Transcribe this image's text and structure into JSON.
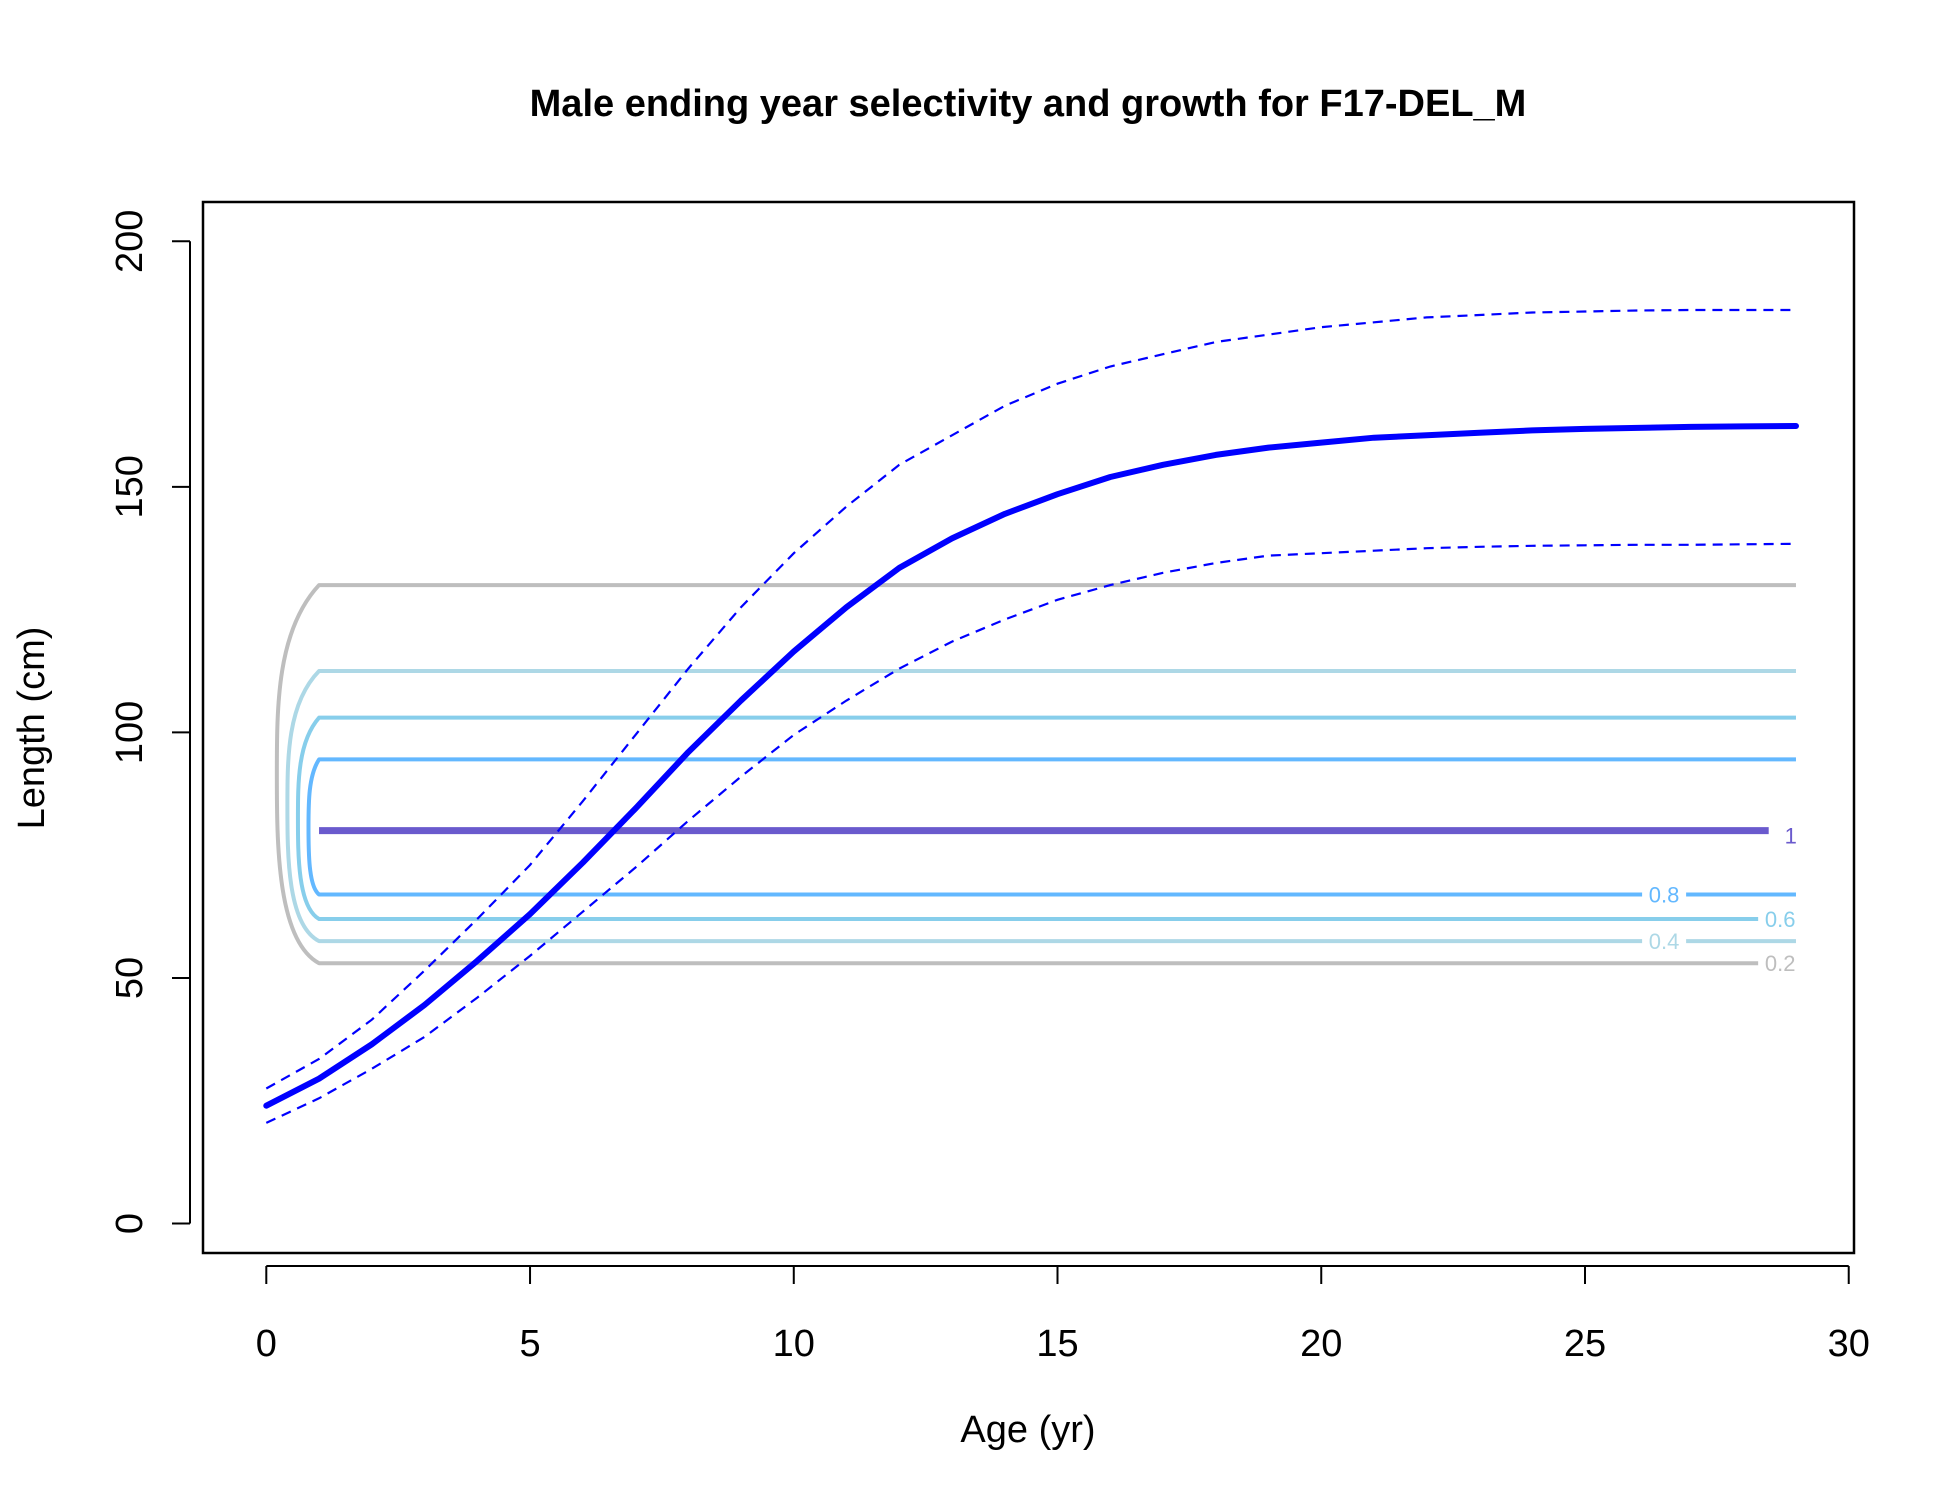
{
  "chart_data": {
    "type": "line",
    "title": "Male ending year selectivity and growth for F17-DEL_M",
    "xlabel": "Age (yr)",
    "ylabel": "Length (cm)",
    "xlim": [
      -1.2,
      30.1
    ],
    "ylim": [
      -6,
      208
    ],
    "xticks": [
      0,
      5,
      10,
      15,
      20,
      25,
      30
    ],
    "yticks": [
      0,
      50,
      100,
      150,
      200
    ],
    "grid": false,
    "growth": {
      "color": "#0000FF",
      "x": [
        0,
        1,
        2,
        3,
        4,
        5,
        6,
        7,
        8,
        9,
        10,
        11,
        12,
        13,
        14,
        15,
        16,
        17,
        18,
        19,
        20,
        21,
        22,
        23,
        24,
        25,
        26,
        27,
        28,
        29
      ],
      "mean": [
        24,
        29.5,
        36.5,
        44.5,
        53.5,
        63,
        73.5,
        84.5,
        96,
        106.5,
        116.5,
        125.5,
        133.5,
        139.5,
        144.5,
        148.5,
        152,
        154.5,
        156.5,
        158,
        159,
        160,
        160.5,
        161,
        161.5,
        161.8,
        162,
        162.2,
        162.3,
        162.4
      ],
      "upper": [
        27.5,
        33.5,
        41.5,
        51.5,
        62,
        73,
        86,
        99.5,
        113,
        125.5,
        136.5,
        146,
        154.5,
        160.5,
        166.5,
        171,
        174.5,
        177,
        179.5,
        181,
        182.5,
        183.5,
        184.5,
        185,
        185.5,
        185.7,
        185.9,
        186,
        186,
        186
      ],
      "lower": [
        20.5,
        25.5,
        31.5,
        38,
        46,
        54.5,
        63.5,
        72.5,
        82,
        91,
        99.5,
        106.5,
        113,
        118.5,
        123,
        127,
        130,
        132.5,
        134.5,
        136,
        136.5,
        137,
        137.5,
        137.8,
        138,
        138.1,
        138.2,
        138.2,
        138.3,
        138.4
      ]
    },
    "selectivity_contours": [
      {
        "level": "0.2",
        "color": "#BEBEBE",
        "low": 53,
        "high": 130,
        "x_min": 0.2,
        "x_max": 29,
        "label_x": 28.7,
        "label_y": 53
      },
      {
        "level": "0.4",
        "color": "#ADD8E6",
        "low": 57.5,
        "high": 112.5,
        "x_min": 0.4,
        "x_max": 29,
        "label_x": 26.5,
        "label_y": 57.5
      },
      {
        "level": "0.6",
        "color": "#87CEEB",
        "low": 62,
        "high": 103,
        "x_min": 0.6,
        "x_max": 29,
        "label_x": 28.7,
        "label_y": 62
      },
      {
        "level": "0.8",
        "color": "#63B8FF",
        "low": 67,
        "high": 94.5,
        "x_min": 0.8,
        "x_max": 29,
        "label_x": 26.5,
        "label_y": 67
      },
      {
        "level": "1",
        "color": "#6A5ACD",
        "low": 80,
        "high": 80,
        "x_min": 1,
        "x_max": 29,
        "label_x": 28.9,
        "label_y": 79
      }
    ]
  }
}
